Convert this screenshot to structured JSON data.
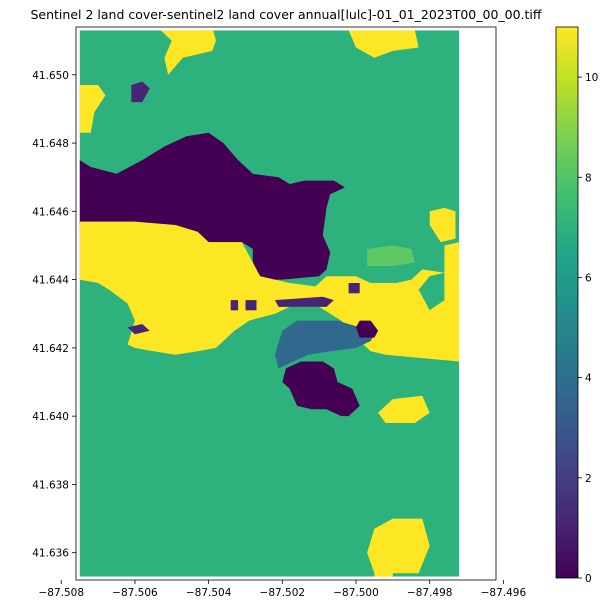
{
  "chart_data": {
    "type": "heatmap",
    "title": "Sentinel 2 land cover-sentinel2 land cover annual[lulc]-01_01_2023T00_00_00.tiff",
    "colormap": "viridis",
    "xlim": [
      -87.5076,
      -87.4962
    ],
    "ylim": [
      41.6352,
      41.6514
    ],
    "raster_extent": {
      "x": [
        -87.5075,
        -87.4972
      ],
      "y": [
        41.6353,
        41.6513
      ]
    },
    "x_ticks": [
      -87.508,
      -87.506,
      -87.504,
      -87.502,
      -87.5,
      -87.498,
      -87.496
    ],
    "x_tick_labels": [
      "−87.508",
      "−87.506",
      "−87.504",
      "−87.502",
      "−87.500",
      "−87.498",
      "−87.496"
    ],
    "y_ticks": [
      41.636,
      41.638,
      41.64,
      41.642,
      41.644,
      41.646,
      41.648,
      41.65
    ],
    "y_tick_labels": [
      "41.636",
      "41.638",
      "41.640",
      "41.642",
      "41.644",
      "41.646",
      "41.648",
      "41.650"
    ],
    "colorbar": {
      "range": [
        0,
        11
      ],
      "ticks": [
        0,
        2,
        4,
        6,
        8,
        10
      ],
      "tick_labels": [
        "0",
        "2",
        "4",
        "6",
        "8",
        "10"
      ]
    },
    "classes": [
      {
        "value": 1,
        "color": "#440154"
      },
      {
        "value": 2,
        "color": "#482475"
      },
      {
        "value": 5,
        "color": "#31688e"
      },
      {
        "value": 7,
        "color": "#2db27d"
      },
      {
        "value": 8,
        "color": "#5ec962"
      },
      {
        "value": 11,
        "color": "#fde725"
      }
    ],
    "background_value": 7,
    "regions": [
      {
        "value": 1,
        "polygon": [
          [
            -87.5075,
            41.6475
          ],
          [
            -87.5072,
            41.6473
          ],
          [
            -87.5065,
            41.6471
          ],
          [
            -87.5058,
            41.6475
          ],
          [
            -87.5052,
            41.6479
          ],
          [
            -87.5046,
            41.6482
          ],
          [
            -87.504,
            41.6483
          ],
          [
            -87.5036,
            41.648
          ],
          [
            -87.5032,
            41.6475
          ],
          [
            -87.5028,
            41.6471
          ],
          [
            -87.5021,
            41.647
          ],
          [
            -87.5018,
            41.6468
          ],
          [
            -87.5014,
            41.6469
          ],
          [
            -87.5006,
            41.6469
          ],
          [
            -87.5003,
            41.6467
          ],
          [
            -87.5007,
            41.6465
          ],
          [
            -87.5008,
            41.6461
          ],
          [
            -87.5009,
            41.6453
          ],
          [
            -87.5007,
            41.6448
          ],
          [
            -87.5008,
            41.6443
          ],
          [
            -87.501,
            41.6441
          ],
          [
            -87.502,
            41.644
          ],
          [
            -87.5026,
            41.644
          ],
          [
            -87.5028,
            41.6444
          ],
          [
            -87.5028,
            41.6449
          ],
          [
            -87.5031,
            41.6451
          ],
          [
            -87.504,
            41.6451
          ],
          [
            -87.5043,
            41.6454
          ],
          [
            -87.5054,
            41.6456
          ],
          [
            -87.5075,
            41.6456
          ]
        ]
      },
      {
        "value": 11,
        "polygon": [
          [
            -87.5075,
            41.6457
          ],
          [
            -87.506,
            41.6457
          ],
          [
            -87.5049,
            41.6456
          ],
          [
            -87.5043,
            41.6454
          ],
          [
            -87.504,
            41.6451
          ],
          [
            -87.5031,
            41.6451
          ],
          [
            -87.5028,
            41.6445
          ],
          [
            -87.5026,
            41.6441
          ],
          [
            -87.5022,
            41.644
          ],
          [
            -87.5018,
            41.6439
          ],
          [
            -87.5011,
            41.6438
          ],
          [
            -87.5008,
            41.6441
          ],
          [
            -87.5005,
            41.6441
          ],
          [
            -87.5,
            41.6441
          ],
          [
            -87.4996,
            41.6439
          ],
          [
            -87.4989,
            41.6439
          ],
          [
            -87.4985,
            41.644
          ],
          [
            -87.4982,
            41.6443
          ],
          [
            -87.4976,
            41.6442
          ],
          [
            -87.4976,
            41.645
          ],
          [
            -87.4972,
            41.6451
          ],
          [
            -87.4972,
            41.6416
          ],
          [
            -87.4982,
            41.6417
          ],
          [
            -87.4992,
            41.6418
          ],
          [
            -87.4996,
            41.6419
          ],
          [
            -87.4999,
            41.6422
          ],
          [
            -87.5004,
            41.6428
          ],
          [
            -87.501,
            41.6432
          ],
          [
            -87.5018,
            41.6432
          ],
          [
            -87.5022,
            41.643
          ],
          [
            -87.5029,
            41.6428
          ],
          [
            -87.5033,
            41.6425
          ],
          [
            -87.5038,
            41.642
          ],
          [
            -87.5043,
            41.6419
          ],
          [
            -87.5049,
            41.6418
          ],
          [
            -87.5055,
            41.6419
          ],
          [
            -87.506,
            41.642
          ],
          [
            -87.5062,
            41.6421
          ],
          [
            -87.506,
            41.6428
          ],
          [
            -87.5062,
            41.6433
          ],
          [
            -87.5067,
            41.6437
          ],
          [
            -87.507,
            41.6439
          ],
          [
            -87.5075,
            41.644
          ]
        ]
      },
      {
        "value": 7,
        "polygon": [
          [
            -87.4983,
            41.6437
          ],
          [
            -87.498,
            41.6441
          ],
          [
            -87.4976,
            41.6442
          ],
          [
            -87.4976,
            41.6434
          ],
          [
            -87.498,
            41.6431
          ]
        ]
      },
      {
        "value": 7,
        "polygon": [
          [
            -87.5028,
            41.6421
          ],
          [
            -87.502,
            41.643
          ],
          [
            -87.5016,
            41.6432
          ],
          [
            -87.501,
            41.643
          ],
          [
            -87.5012,
            41.6426
          ],
          [
            -87.5018,
            41.6424
          ]
        ]
      },
      {
        "value": 5,
        "polygon": [
          [
            -87.502,
            41.6425
          ],
          [
            -87.5016,
            41.6428
          ],
          [
            -87.5005,
            41.6428
          ],
          [
            -87.4999,
            41.6426
          ],
          [
            -87.4995,
            41.6424
          ],
          [
            -87.4996,
            41.6422
          ],
          [
            -87.5,
            41.642
          ],
          [
            -87.5007,
            41.6419
          ],
          [
            -87.5013,
            41.6418
          ],
          [
            -87.5017,
            41.6416
          ],
          [
            -87.5021,
            41.6414
          ],
          [
            -87.5022,
            41.6418
          ]
        ]
      },
      {
        "value": 1,
        "polygon": [
          [
            -87.5019,
            41.6414
          ],
          [
            -87.5015,
            41.6416
          ],
          [
            -87.5009,
            41.6416
          ],
          [
            -87.5006,
            41.6414
          ],
          [
            -87.5005,
            41.641
          ],
          [
            -87.5001,
            41.6408
          ],
          [
            -87.4999,
            41.6403
          ],
          [
            -87.5002,
            41.64
          ],
          [
            -87.5004,
            41.64
          ],
          [
            -87.5008,
            41.6402
          ],
          [
            -87.5012,
            41.6402
          ],
          [
            -87.5016,
            41.6403
          ],
          [
            -87.5018,
            41.6408
          ],
          [
            -87.502,
            41.641
          ]
        ]
      },
      {
        "value": 1,
        "polygon": [
          [
            -87.4999,
            41.6428
          ],
          [
            -87.4996,
            41.6428
          ],
          [
            -87.4994,
            41.6425
          ],
          [
            -87.4995,
            41.6423
          ],
          [
            -87.4999,
            41.6423
          ],
          [
            -87.5,
            41.6426
          ]
        ]
      },
      {
        "value": 2,
        "polygon": [
          [
            -87.5022,
            41.6434
          ],
          [
            -87.5009,
            41.6435
          ],
          [
            -87.5006,
            41.6434
          ],
          [
            -87.5008,
            41.6432
          ],
          [
            -87.5014,
            41.6432
          ],
          [
            -87.5021,
            41.6432
          ]
        ]
      },
      {
        "value": 2,
        "polygon": [
          [
            -87.5062,
            41.6426
          ],
          [
            -87.5058,
            41.6427
          ],
          [
            -87.5056,
            41.6425
          ],
          [
            -87.506,
            41.6424
          ]
        ]
      },
      {
        "value": 2,
        "polygon": [
          [
            -87.5002,
            41.6439
          ],
          [
            -87.4999,
            41.6439
          ],
          [
            -87.4999,
            41.6436
          ],
          [
            -87.5002,
            41.6436
          ]
        ]
      },
      {
        "value": 2,
        "polygon": [
          [
            -87.503,
            41.6434
          ],
          [
            -87.5027,
            41.6434
          ],
          [
            -87.5027,
            41.6431
          ],
          [
            -87.503,
            41.6431
          ]
        ]
      },
      {
        "value": 2,
        "polygon": [
          [
            -87.5034,
            41.6434
          ],
          [
            -87.5032,
            41.6434
          ],
          [
            -87.5032,
            41.6431
          ],
          [
            -87.5034,
            41.6431
          ]
        ]
      },
      {
        "value": 2,
        "polygon": [
          [
            -87.5061,
            41.6497
          ],
          [
            -87.5058,
            41.6498
          ],
          [
            -87.5056,
            41.6496
          ],
          [
            -87.5058,
            41.6492
          ],
          [
            -87.5061,
            41.6492
          ]
        ]
      },
      {
        "value": 2,
        "polygon": [
          [
            -87.4972,
            41.6461
          ],
          [
            -87.497,
            41.6461
          ],
          [
            -87.497,
            41.6457
          ],
          [
            -87.4972,
            41.6457
          ]
        ]
      },
      {
        "value": 8,
        "polygon": [
          [
            -87.4997,
            41.6449
          ],
          [
            -87.499,
            41.645
          ],
          [
            -87.4985,
            41.6449
          ],
          [
            -87.4984,
            41.6445
          ],
          [
            -87.499,
            41.6444
          ],
          [
            -87.4997,
            41.6444
          ]
        ]
      },
      {
        "value": 11,
        "polygon": [
          [
            -87.498,
            41.646
          ],
          [
            -87.4976,
            41.6461
          ],
          [
            -87.4973,
            41.646
          ],
          [
            -87.4973,
            41.6452
          ],
          [
            -87.4977,
            41.6451
          ],
          [
            -87.498,
            41.6456
          ]
        ]
      },
      {
        "value": 11,
        "polygon": [
          [
            -87.5043,
            41.6513
          ],
          [
            -87.5039,
            41.6514
          ],
          [
            -87.5038,
            41.651
          ],
          [
            -87.5039,
            41.6507
          ],
          [
            -87.5047,
            41.6505
          ],
          [
            -87.5051,
            41.65
          ],
          [
            -87.5052,
            41.6505
          ],
          [
            -87.505,
            41.651
          ],
          [
            -87.5053,
            41.6513
          ]
        ]
      },
      {
        "value": 11,
        "polygon": [
          [
            -87.4993,
            41.6513
          ],
          [
            -87.4984,
            41.6513
          ],
          [
            -87.4983,
            41.6508
          ],
          [
            -87.499,
            41.6507
          ],
          [
            -87.4995,
            41.6505
          ],
          [
            -87.5,
            41.6508
          ],
          [
            -87.5002,
            41.6513
          ]
        ]
      },
      {
        "value": 11,
        "polygon": [
          [
            -87.5075,
            41.6497
          ],
          [
            -87.507,
            41.6497
          ],
          [
            -87.5068,
            41.6494
          ],
          [
            -87.5071,
            41.6489
          ],
          [
            -87.5072,
            41.6483
          ],
          [
            -87.5075,
            41.6483
          ]
        ]
      },
      {
        "value": 11,
        "polygon": [
          [
            -87.499,
            41.6405
          ],
          [
            -87.4982,
            41.6406
          ],
          [
            -87.498,
            41.6401
          ],
          [
            -87.4984,
            41.6398
          ],
          [
            -87.4992,
            41.6398
          ],
          [
            -87.4994,
            41.6401
          ]
        ]
      },
      {
        "value": 11,
        "polygon": [
          [
            -87.499,
            41.637
          ],
          [
            -87.4982,
            41.637
          ],
          [
            -87.498,
            41.6362
          ],
          [
            -87.4983,
            41.6354
          ],
          [
            -87.4995,
            41.6354
          ],
          [
            -87.4997,
            41.636
          ],
          [
            -87.4995,
            41.6367
          ]
        ]
      },
      {
        "value": 11,
        "polygon": [
          [
            -87.4995,
            41.6355
          ],
          [
            -87.499,
            41.6355
          ],
          [
            -87.499,
            41.6353
          ],
          [
            -87.4995,
            41.6353
          ]
        ]
      }
    ]
  }
}
